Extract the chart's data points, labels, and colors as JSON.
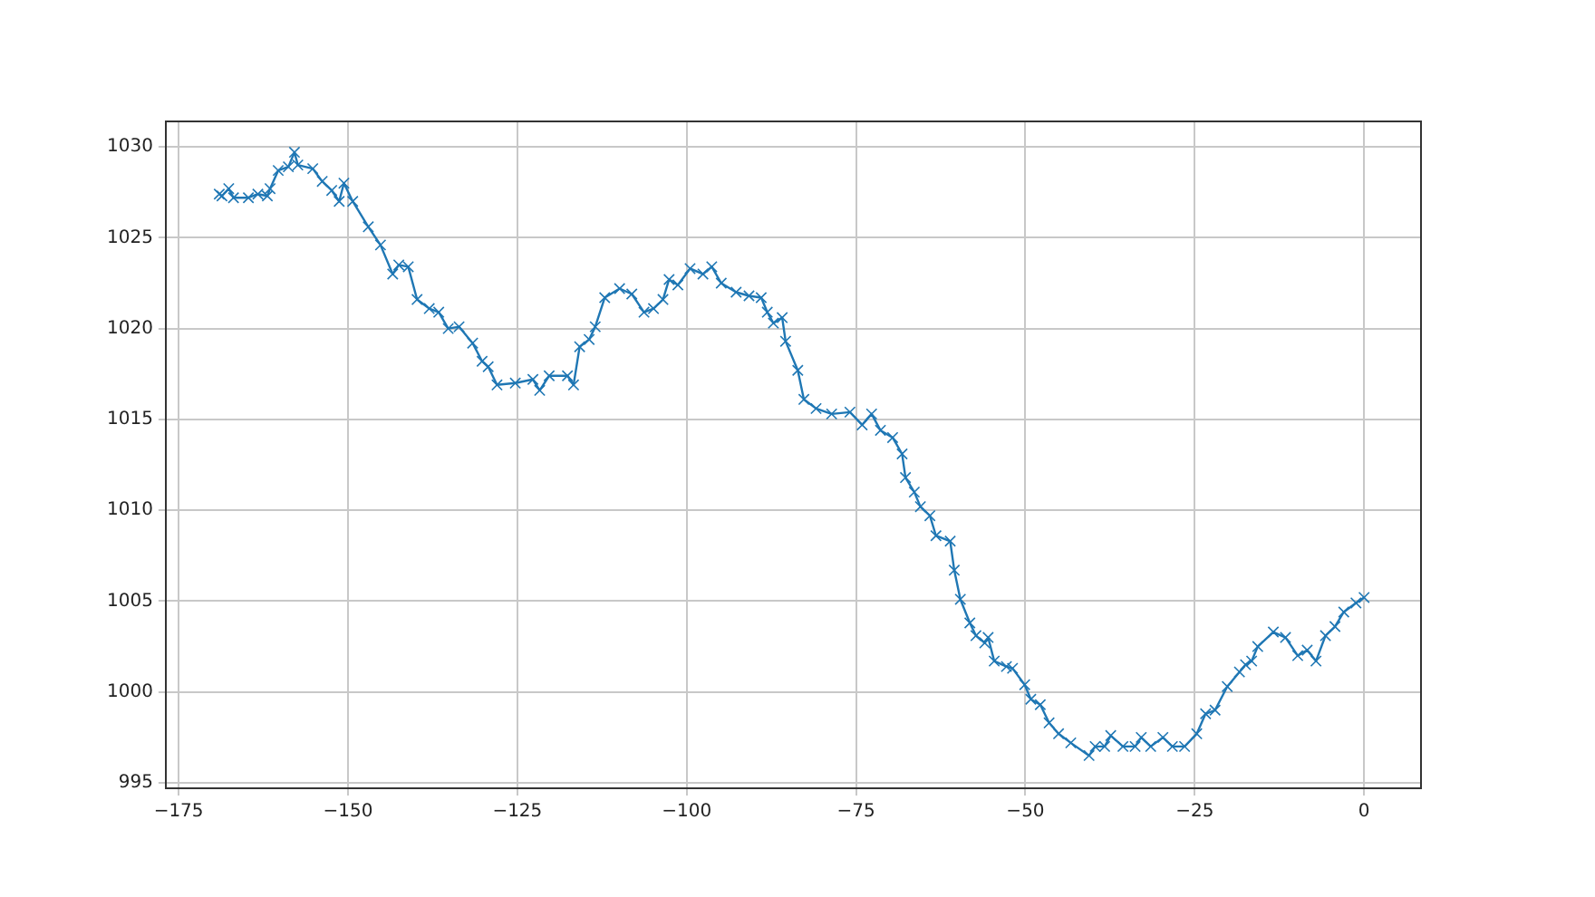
{
  "chart_data": {
    "type": "line",
    "x": [
      -169.0,
      -168.6,
      -167.6,
      -166.9,
      -164.7,
      -163.3,
      -161.9,
      -161.5,
      -160.3,
      -158.8,
      -157.9,
      -157.4,
      -155.2,
      -153.8,
      -152.4,
      -151.3,
      -150.6,
      -149.3,
      -147.0,
      -145.2,
      -143.4,
      -142.5,
      -141.1,
      -139.8,
      -138.0,
      -136.6,
      -135.2,
      -133.6,
      -131.6,
      -130.2,
      -129.3,
      -128.0,
      -125.3,
      -122.7,
      -121.7,
      -120.3,
      -117.6,
      -116.7,
      -115.8,
      -114.4,
      -113.5,
      -112.1,
      -109.9,
      -108.1,
      -106.3,
      -104.9,
      -103.5,
      -102.6,
      -101.3,
      -99.5,
      -97.6,
      -96.3,
      -94.9,
      -92.7,
      -90.8,
      -89.0,
      -88.1,
      -87.2,
      -85.9,
      -85.4,
      -83.6,
      -82.7,
      -80.9,
      -78.6,
      -75.9,
      -74.1,
      -72.7,
      -71.4,
      -69.6,
      -68.2,
      -67.7,
      -66.4,
      -65.5,
      -64.1,
      -63.2,
      -61.1,
      -60.5,
      -59.6,
      -58.2,
      -57.3,
      -56.0,
      -55.5,
      -54.6,
      -52.8,
      -51.9,
      -50.1,
      -49.2,
      -47.8,
      -46.5,
      -45.1,
      -43.3,
      -40.6,
      -39.7,
      -38.3,
      -37.4,
      -35.6,
      -33.8,
      -32.9,
      -31.5,
      -29.7,
      -28.3,
      -26.5,
      -24.7,
      -23.4,
      -22.0,
      -20.2,
      -18.4,
      -17.5,
      -16.6,
      -15.7,
      -13.4,
      -11.6,
      -9.8,
      -8.4,
      -7.1,
      -5.7,
      -4.3,
      -3.0,
      -1.2,
      0
    ],
    "series": [
      {
        "color": "#1f77b4",
        "values": [
          1027.4,
          1027.3,
          1027.7,
          1027.2,
          1027.2,
          1027.4,
          1027.3,
          1027.7,
          1028.7,
          1028.9,
          1029.7,
          1029.0,
          1028.8,
          1028.1,
          1027.6,
          1027.0,
          1028.0,
          1027.0,
          1025.6,
          1024.6,
          1023.0,
          1023.5,
          1023.4,
          1021.6,
          1021.1,
          1020.9,
          1020.0,
          1020.1,
          1019.2,
          1018.2,
          1017.9,
          1016.9,
          1017.0,
          1017.2,
          1016.6,
          1017.4,
          1017.4,
          1016.9,
          1019.0,
          1019.4,
          1020.1,
          1021.7,
          1022.2,
          1021.9,
          1020.9,
          1021.1,
          1021.6,
          1022.7,
          1022.4,
          1023.3,
          1023.0,
          1023.4,
          1022.5,
          1022.0,
          1021.8,
          1021.7,
          1020.9,
          1020.3,
          1020.6,
          1019.3,
          1017.7,
          1016.1,
          1015.6,
          1015.3,
          1015.4,
          1014.7,
          1015.3,
          1014.4,
          1014.0,
          1013.1,
          1011.8,
          1011.0,
          1010.2,
          1009.7,
          1008.6,
          1008.3,
          1006.7,
          1005.1,
          1003.8,
          1003.1,
          1002.7,
          1003.0,
          1001.7,
          1001.4,
          1001.3,
          1000.4,
          999.6,
          999.3,
          998.3,
          997.7,
          997.2,
          996.5,
          997.0,
          997.0,
          997.6,
          997.0,
          997.0,
          997.5,
          997.0,
          997.5,
          997.0,
          997.0,
          997.7,
          998.8,
          999.0,
          1000.3,
          1001.1,
          1001.5,
          1001.7,
          1002.5,
          1003.3,
          1003.0,
          1002.0,
          1002.3,
          1001.7,
          1003.1,
          1003.6,
          1004.4,
          1004.9,
          1005.2
        ]
      }
    ],
    "xlim": [
      -176.9,
      8.4
    ],
    "ylim": [
      994.7,
      1031.4
    ],
    "xticks": [
      -175,
      -150,
      -125,
      -100,
      -75,
      -50,
      -25,
      0
    ],
    "yticks": [
      995,
      1000,
      1005,
      1010,
      1015,
      1020,
      1025,
      1030
    ],
    "grid": true,
    "marker": "cross",
    "line_style": "solid",
    "legend": false
  }
}
